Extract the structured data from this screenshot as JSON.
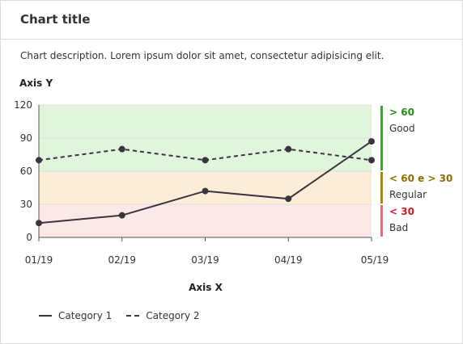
{
  "card": {
    "title": "Chart title",
    "description": "Chart description. Lorem ipsum dolor sit amet, consectetur adipisicing elit."
  },
  "chart_data": {
    "type": "line",
    "xlabel": "Axis X",
    "ylabel": "Axis Y",
    "categories": [
      "01/19",
      "02/19",
      "03/19",
      "04/19",
      "05/19"
    ],
    "ylim": [
      0,
      120
    ],
    "yticks": [
      0,
      30,
      60,
      90,
      120
    ],
    "grid": true,
    "series": [
      {
        "name": "Category 1",
        "style": "solid",
        "values": [
          13,
          20,
          42,
          35,
          87
        ]
      },
      {
        "name": "Category 2",
        "style": "dashed",
        "values": [
          70,
          80,
          70,
          80,
          70
        ]
      }
    ],
    "zones": [
      {
        "from": 0,
        "to": 30,
        "label_bold": "< 30",
        "label": "Bad",
        "fill": "#fde8e8",
        "bar": "#e0707a",
        "text_color": "#c0202a"
      },
      {
        "from": 30,
        "to": 60,
        "label_bold": "< 60 e > 30",
        "label": "Regular",
        "fill": "#fdedd6",
        "bar": "#a88a0a",
        "text_color": "#8a6d00"
      },
      {
        "from": 60,
        "to": 120,
        "label_bold": "> 60",
        "label": "Good",
        "fill": "#e1f5dc",
        "bar": "#3aa53a",
        "text_color": "#2a8a1a"
      }
    ],
    "line_color": "#3a3440",
    "legend_position": "bottom-left"
  }
}
